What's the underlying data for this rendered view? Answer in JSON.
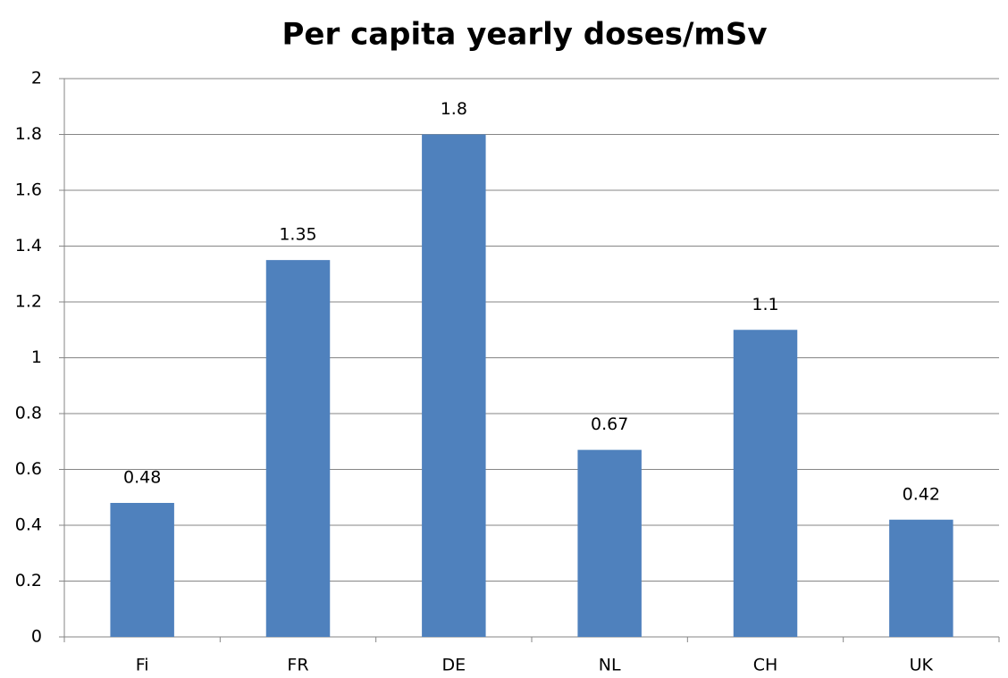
{
  "chart_data": {
    "type": "bar",
    "title": "Per capita yearly doses/mSv",
    "categories": [
      "Fi",
      "FR",
      "DE",
      "NL",
      "CH",
      "UK"
    ],
    "values": [
      0.48,
      1.35,
      1.8,
      0.67,
      1.1,
      0.42
    ],
    "color": "#4f81bd",
    "ylim": [
      0,
      2
    ],
    "yticks": [
      0,
      0.2,
      0.4,
      0.6,
      0.8,
      1,
      1.2,
      1.4,
      1.6,
      1.8,
      2
    ],
    "grid": true,
    "data_labels": true
  }
}
